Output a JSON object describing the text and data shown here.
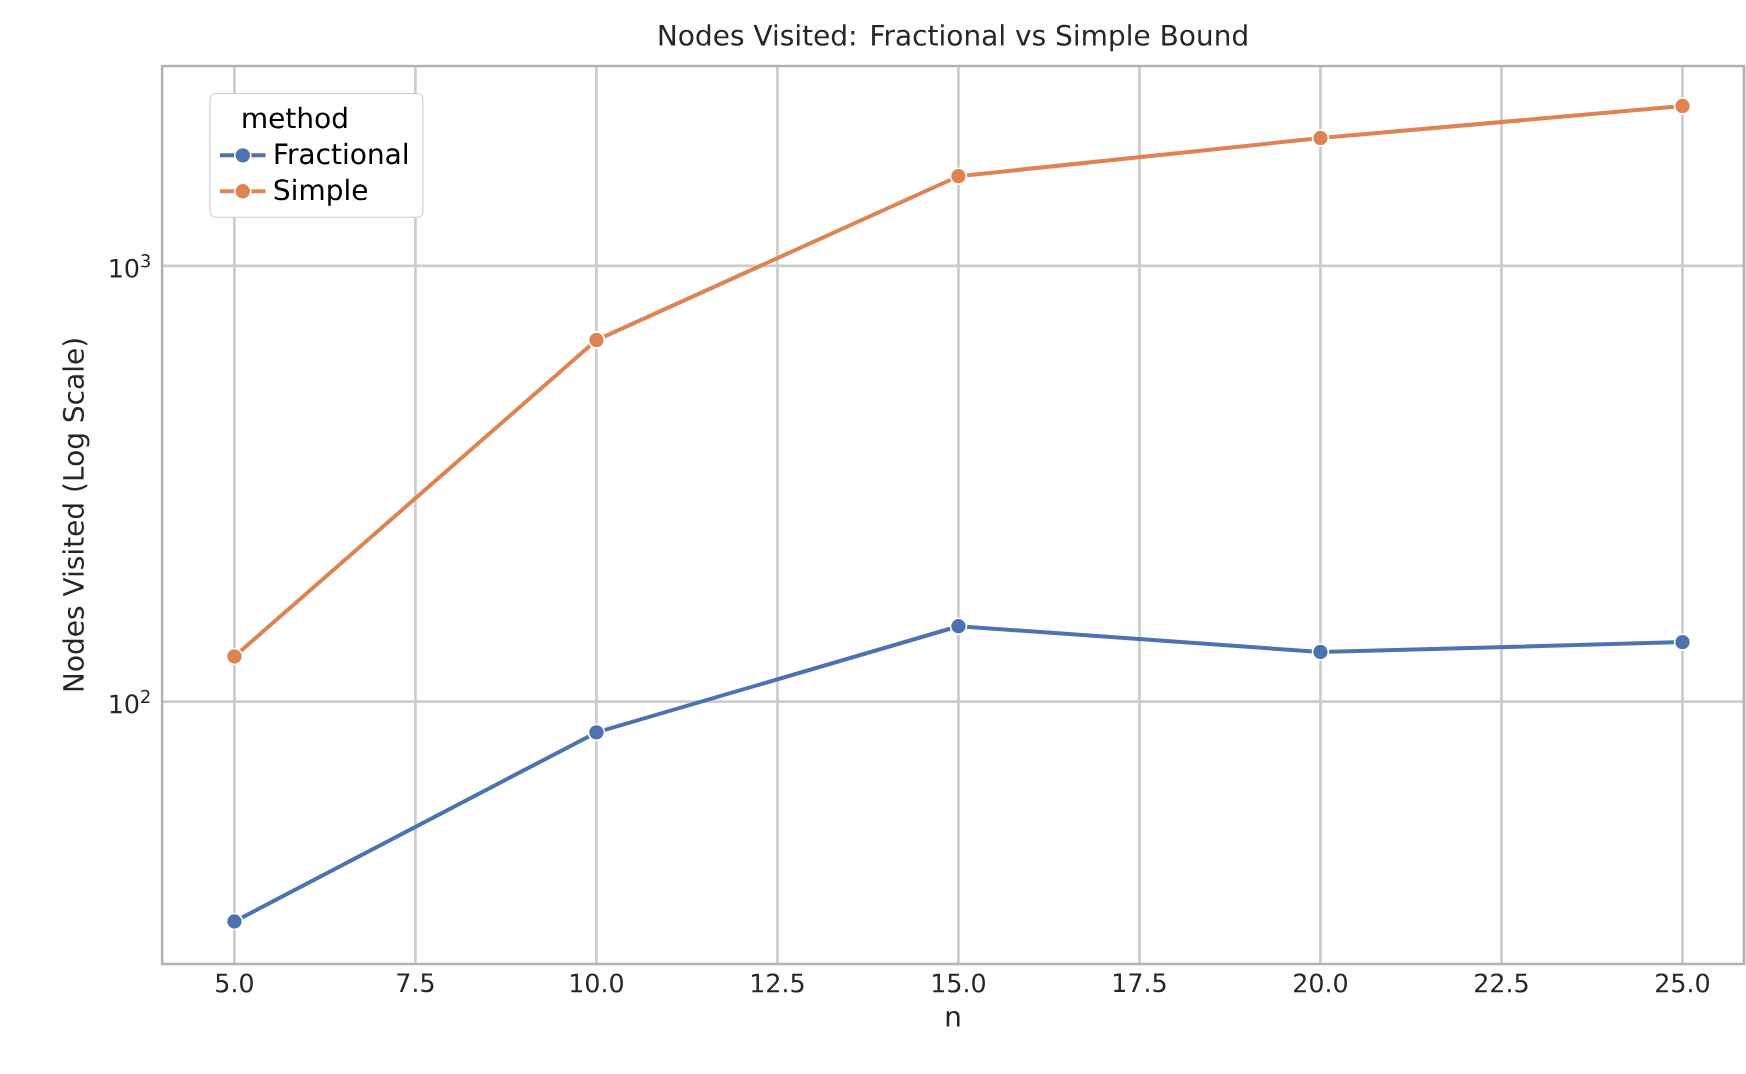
{
  "chart_data": {
    "type": "line",
    "title": "Nodes Visited: Fractional vs Simple Bound",
    "xlabel": "n",
    "ylabel": "Nodes Visited (Log Scale)",
    "legend_title": "method",
    "x": [
      5,
      10,
      15,
      20,
      25
    ],
    "series": [
      {
        "name": "Fractional",
        "color": "#4c72b0",
        "values": [
          31.3,
          85,
          149,
          130,
          137
        ]
      },
      {
        "name": "Simple",
        "color": "#dd8452",
        "values": [
          127,
          676,
          1607,
          1966,
          2328
        ]
      }
    ],
    "log": "y",
    "xlim": [
      4,
      25.85
    ],
    "ylim": [
      25,
      2877
    ],
    "xticks": [
      {
        "value": 5,
        "label": "5.0"
      },
      {
        "value": 7.5,
        "label": "7.5"
      },
      {
        "value": 10,
        "label": "10.0"
      },
      {
        "value": 12.5,
        "label": "12.5"
      },
      {
        "value": 15,
        "label": "15.0"
      },
      {
        "value": 17.5,
        "label": "17.5"
      },
      {
        "value": 20,
        "label": "20.0"
      },
      {
        "value": 22.5,
        "label": "22.5"
      },
      {
        "value": 25,
        "label": "25.0"
      }
    ],
    "yticks": [
      {
        "value": 100,
        "label": "10$^{2}$"
      },
      {
        "value": 1000,
        "label": "10$^{3}$"
      }
    ],
    "grid": true,
    "legend": "top left",
    "marker": "circle",
    "line_style": "solid"
  }
}
